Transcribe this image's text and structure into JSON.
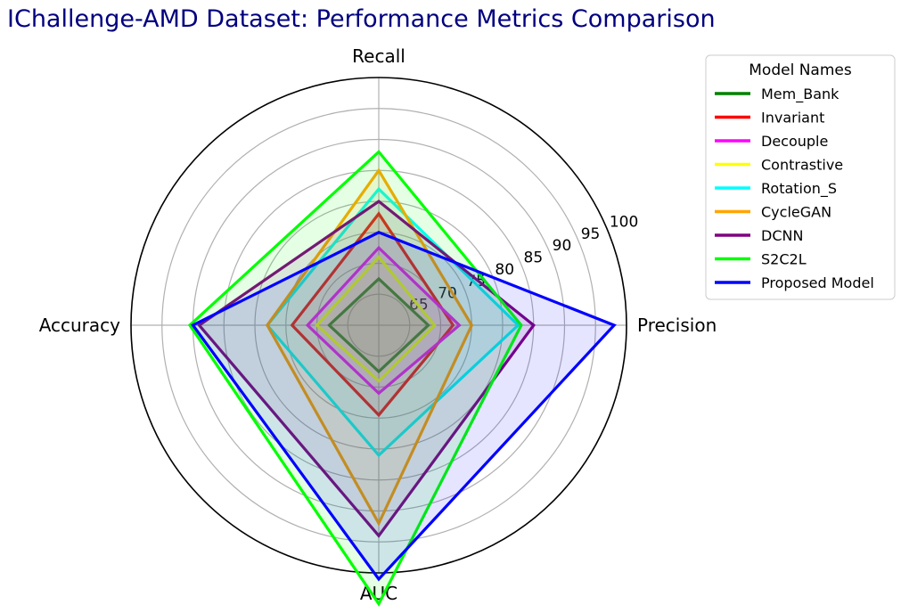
{
  "chart_data": {
    "type": "radar",
    "title": "IChallenge-AMD Dataset: Performance Metrics Comparison",
    "title_color": "#00007f",
    "axes": [
      "Precision",
      "Recall",
      "Accuracy",
      "AUC"
    ],
    "rlim": [
      60,
      100
    ],
    "ticks": [
      65,
      70,
      75,
      80,
      85,
      90,
      95,
      100
    ],
    "grid": true,
    "legend_title": "Model Names",
    "legend_position": "outside-right",
    "series": [
      {
        "name": "Mem_Bank",
        "color": "#008000",
        "values": [
          68.0,
          67.5,
          68.0,
          67.5
        ]
      },
      {
        "name": "Invariant",
        "color": "#ff0000",
        "values": [
          72.0,
          78.0,
          74.0,
          74.5
        ]
      },
      {
        "name": "Decouple",
        "color": "#ff00ff",
        "values": [
          73.0,
          72.5,
          71.5,
          71.0
        ]
      },
      {
        "name": "Contrastive",
        "color": "#ffff00",
        "values": [
          69.0,
          71.0,
          70.0,
          69.0
        ]
      },
      {
        "name": "Rotation_S",
        "color": "#00ffff",
        "values": [
          82.5,
          82.0,
          78.0,
          81.0
        ]
      },
      {
        "name": "CycleGAN",
        "color": "#ffa500",
        "values": [
          75.0,
          85.0,
          78.0,
          92.0
        ]
      },
      {
        "name": "DCNN",
        "color": "#800080",
        "values": [
          85.0,
          80.0,
          89.0,
          94.0
        ]
      },
      {
        "name": "S2C2L",
        "color": "#00ff00",
        "values": [
          83.0,
          88.0,
          90.5,
          105.0
        ]
      },
      {
        "name": "Proposed Model",
        "color": "#0000ff",
        "values": [
          98.0,
          75.0,
          90.0,
          101.0
        ]
      }
    ]
  }
}
